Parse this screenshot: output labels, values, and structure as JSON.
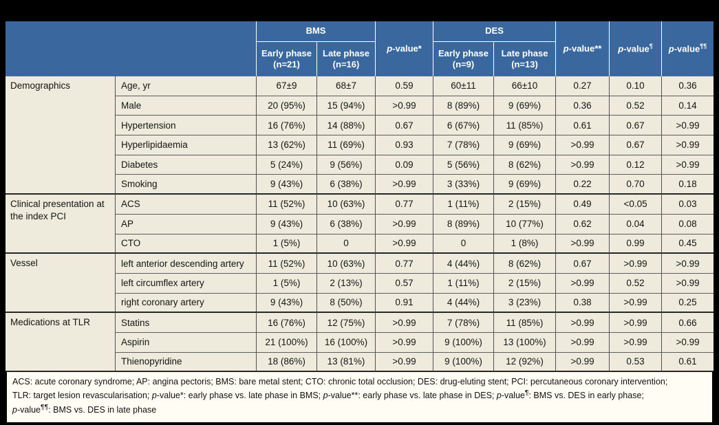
{
  "colors": {
    "header_bg": "#3a689e",
    "header_text": "#ffffff",
    "body_bg": "#eeebdc",
    "footnote_bg": "#fffdf4",
    "grid_line": "#4f4f4f",
    "frame": "#000000"
  },
  "table": {
    "header": {
      "groups": [
        {
          "label": "BMS",
          "sub": [
            "Early phase (n=21)",
            "Late phase (n=16)"
          ]
        },
        {
          "label": "DES",
          "sub": [
            "Early phase (n=9)",
            "Late phase (n=13)"
          ]
        }
      ],
      "pvalue_columns": [
        "p-value*",
        "p-value**",
        "p-value¶",
        "p-value¶¶"
      ]
    },
    "sections": [
      {
        "label": "Demographics",
        "rows": [
          {
            "name": "Age, yr",
            "values": [
              "67±9",
              "68±7",
              "0.59",
              "60±11",
              "66±10",
              "0.27",
              "0.10",
              "0.36"
            ]
          },
          {
            "name": "Male",
            "values": [
              "20 (95%)",
              "15 (94%)",
              ">0.99",
              "8 (89%)",
              "9 (69%)",
              "0.36",
              "0.52",
              "0.14"
            ]
          },
          {
            "name": "Hypertension",
            "values": [
              "16 (76%)",
              "14 (88%)",
              "0.67",
              "6 (67%)",
              "11 (85%)",
              "0.61",
              "0.67",
              ">0.99"
            ]
          },
          {
            "name": "Hyperlipidaemia",
            "values": [
              "13 (62%)",
              "11 (69%)",
              "0.93",
              "7 (78%)",
              "9 (69%)",
              ">0.99",
              "0.67",
              ">0.99"
            ]
          },
          {
            "name": "Diabetes",
            "values": [
              "5 (24%)",
              "9 (56%)",
              "0.09",
              "5 (56%)",
              "8 (62%)",
              ">0.99",
              "0.12",
              ">0.99"
            ]
          },
          {
            "name": "Smoking",
            "values": [
              "9 (43%)",
              "6 (38%)",
              ">0.99",
              "3 (33%)",
              "9 (69%)",
              "0.22",
              "0.70",
              "0.18"
            ]
          }
        ]
      },
      {
        "label": "Clinical presentation at the index PCI",
        "rows": [
          {
            "name": "ACS",
            "values": [
              "11 (52%)",
              "10 (63%)",
              "0.77",
              "1 (11%)",
              "2 (15%)",
              "0.49",
              "<0.05",
              "0.03"
            ]
          },
          {
            "name": "AP",
            "values": [
              "9 (43%)",
              "6 (38%)",
              ">0.99",
              "8 (89%)",
              "10 (77%)",
              "0.62",
              "0.04",
              "0.08"
            ]
          },
          {
            "name": "CTO",
            "values": [
              "1 (5%)",
              "0",
              ">0.99",
              "0",
              "1 (8%)",
              ">0.99",
              "0.99",
              "0.45"
            ]
          }
        ]
      },
      {
        "label": "Vessel",
        "rows": [
          {
            "name": "left anterior descending artery",
            "values": [
              "11 (52%)",
              "10 (63%)",
              "0.77",
              "4 (44%)",
              "8 (62%)",
              "0.67",
              ">0.99",
              ">0.99"
            ]
          },
          {
            "name": "left circumflex artery",
            "values": [
              "1 (5%)",
              "2 (13%)",
              "0.57",
              "1 (11%)",
              "2 (15%)",
              ">0.99",
              "0.52",
              ">0.99"
            ]
          },
          {
            "name": "right coronary artery",
            "values": [
              "9 (43%)",
              "8 (50%)",
              "0.91",
              "4 (44%)",
              "3 (23%)",
              "0.38",
              ">0.99",
              "0.25"
            ]
          }
        ]
      },
      {
        "label": "Medications at TLR",
        "rows": [
          {
            "name": "Statins",
            "values": [
              "16 (76%)",
              "12 (75%)",
              ">0.99",
              "7 (78%)",
              "11 (85%)",
              ">0.99",
              ">0.99",
              "0.66"
            ]
          },
          {
            "name": "Aspirin",
            "values": [
              "21 (100%)",
              "16 (100%)",
              ">0.99",
              "9 (100%)",
              "13 (100%)",
              ">0.99",
              ">0.99",
              ">0.99"
            ]
          },
          {
            "name": "Thienopyridine",
            "values": [
              "18 (86%)",
              "13 (81%)",
              ">0.99",
              "9 (100%)",
              "12 (92%)",
              ">0.99",
              "0.53",
              "0.61"
            ]
          }
        ]
      }
    ],
    "footnote_lines": [
      "ACS: acute coronary syndrome; AP: angina pectoris; BMS: bare metal stent; CTO: chronic total occlusion; DES: drug-eluting stent; PCI: percutaneous coronary intervention;",
      "TLR: target lesion revascularisation; p-value*: early phase vs. late phase in BMS; p-value**: early phase vs. late phase in DES; p-value¶: BMS vs. DES in early phase;",
      "p-value¶¶: BMS vs. DES in late phase"
    ]
  }
}
